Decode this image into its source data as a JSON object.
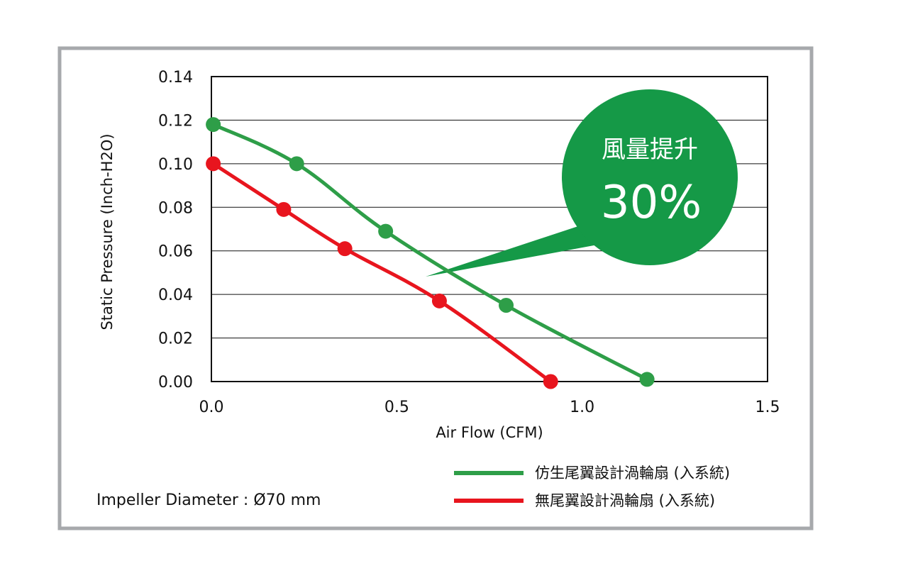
{
  "chart_data": {
    "type": "line",
    "xlabel": "Air Flow (CFM)",
    "ylabel": "Static Pressure (Inch-H2O)",
    "xlim": [
      0,
      1.5
    ],
    "ylim": [
      0,
      0.14
    ],
    "xticks": [
      "0.0",
      "0.5",
      "1.0",
      "1.5"
    ],
    "xtick_values": [
      0,
      0.5,
      1.0,
      1.5
    ],
    "yticks": [
      "0.00",
      "0.02",
      "0.04",
      "0.06",
      "0.08",
      "0.10",
      "0.12",
      "0.14"
    ],
    "ytick_values": [
      0,
      0.02,
      0.04,
      0.06,
      0.08,
      0.1,
      0.12,
      0.14
    ],
    "grid": "horizontal",
    "legend_placement": "bottom-right",
    "series": [
      {
        "name": "仿生尾翼設計渦輪扇 (入系統)",
        "color": "#2e9e48",
        "points": [
          [
            0.005,
            0.118
          ],
          [
            0.23,
            0.1
          ],
          [
            0.47,
            0.069
          ],
          [
            0.795,
            0.035
          ],
          [
            1.175,
            0.001
          ]
        ]
      },
      {
        "name": "無尾翼設計渦輪扇 (入系統)",
        "color": "#e8151e",
        "points": [
          [
            0.005,
            0.1
          ],
          [
            0.195,
            0.079
          ],
          [
            0.36,
            0.061
          ],
          [
            0.615,
            0.037
          ],
          [
            0.915,
            0.0
          ]
        ]
      }
    ],
    "annotation": {
      "line1": "風量提升",
      "line2": "30%",
      "color": "#159947"
    },
    "note": "Impeller Diameter : Ø70 mm"
  }
}
